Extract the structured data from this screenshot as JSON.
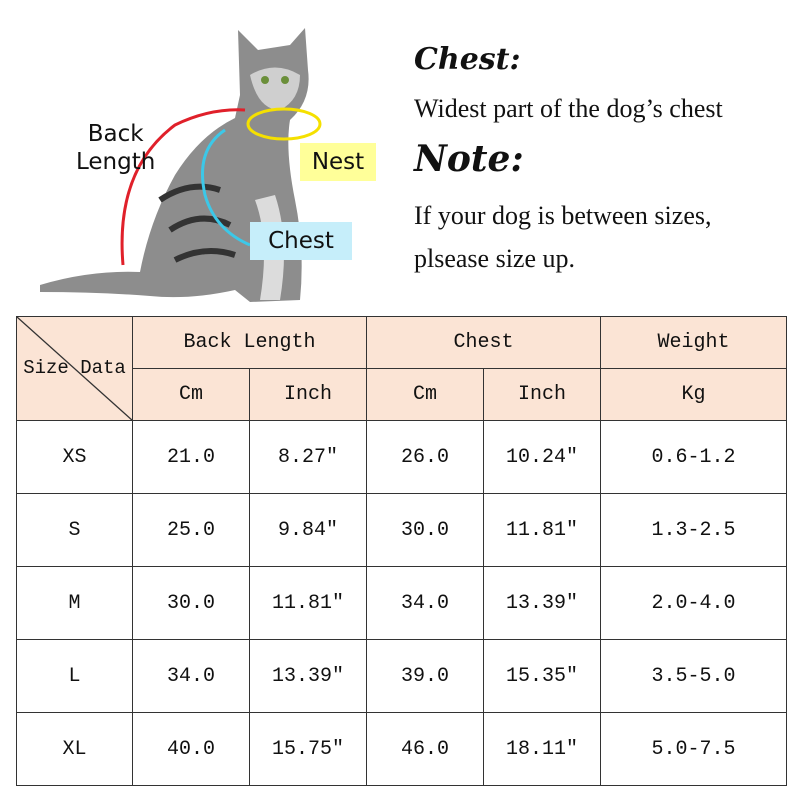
{
  "illustration": {
    "labels": {
      "back_length": "Back\nLength",
      "nest": "Nest",
      "chest": "Chest"
    },
    "colors": {
      "back_line": "#e0202a",
      "nest_line": "#f5e000",
      "chest_line": "#3cc8e8",
      "nest_bg": "#ffff99",
      "chest_bg": "#c6eefa"
    }
  },
  "notes": {
    "chest_heading": "Chest:",
    "chest_text": "Widest part of the dog’s chest",
    "note_heading": "Note:",
    "note_line1": "If your dog is between sizes,",
    "note_line2": "plsease size up."
  },
  "table": {
    "corner": "Size Data",
    "groups": [
      "Back Length",
      "Chest",
      "Weight"
    ],
    "units": [
      "Cm",
      "Inch",
      "Cm",
      "Inch",
      "Kg"
    ],
    "header_bg": "#fbe4d5",
    "rows": [
      [
        "XS",
        "21.0",
        "8.27″",
        "26.0",
        "10.24″",
        "0.6-1.2"
      ],
      [
        "S",
        "25.0",
        "9.84″",
        "30.0",
        "11.81″",
        "1.3-2.5"
      ],
      [
        "M",
        "30.0",
        "11.81″",
        "34.0",
        "13.39″",
        "2.0-4.0"
      ],
      [
        "L",
        "34.0",
        "13.39″",
        "39.0",
        "15.35″",
        "3.5-5.0"
      ],
      [
        "XL",
        "40.0",
        "15.75″",
        "46.0",
        "18.11″",
        "5.0-7.5"
      ]
    ]
  }
}
